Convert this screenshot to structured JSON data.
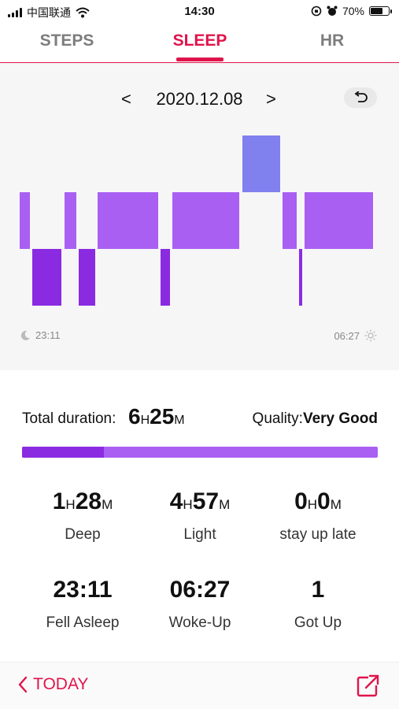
{
  "status_bar": {
    "carrier": "中国联通",
    "time": "14:30",
    "battery": "70%",
    "battery_level": 0.7
  },
  "tabs": [
    {
      "label": "STEPS",
      "active": false
    },
    {
      "label": "SLEEP",
      "active": true
    },
    {
      "label": "HR",
      "active": false
    }
  ],
  "date_nav": {
    "prev": "<",
    "date": "2020.12.08",
    "next": ">"
  },
  "chart_data": {
    "type": "timeline",
    "start_time": "23:11",
    "end_time": "06:27",
    "stages": [
      {
        "stage": "light",
        "from": 0.0,
        "to": 0.035
      },
      {
        "stage": "deep",
        "from": 0.035,
        "to": 0.125
      },
      {
        "stage": "light",
        "from": 0.125,
        "to": 0.165
      },
      {
        "stage": "deep",
        "from": 0.165,
        "to": 0.22
      },
      {
        "stage": "light",
        "from": 0.22,
        "to": 0.395
      },
      {
        "stage": "deep",
        "from": 0.395,
        "to": 0.43
      },
      {
        "stage": "light",
        "from": 0.43,
        "to": 0.625
      },
      {
        "stage": "awake",
        "from": 0.625,
        "to": 0.74
      },
      {
        "stage": "light",
        "from": 0.74,
        "to": 0.785
      },
      {
        "stage": "deep",
        "from": 0.785,
        "to": 0.8
      },
      {
        "stage": "light",
        "from": 0.8,
        "to": 1.0
      }
    ],
    "colors": {
      "awake": "#8080ee",
      "light": "#a95ff2",
      "deep": "#8a2be2"
    }
  },
  "summary": {
    "total_label": "Total duration:",
    "total_h": "6",
    "total_m": "25",
    "unit_h": "H",
    "unit_m": "M",
    "quality_label": "Quality:",
    "quality_value": "Very Good",
    "deep_fraction": 0.23
  },
  "stats": [
    {
      "h": "1",
      "m": "28",
      "label": "Deep"
    },
    {
      "h": "4",
      "m": "57",
      "label": "Light"
    },
    {
      "h": "0",
      "m": "0",
      "label": "stay up late"
    }
  ],
  "stats2": [
    {
      "value": "23:11",
      "label": "Fell Asleep"
    },
    {
      "value": "06:27",
      "label": "Woke-Up"
    },
    {
      "value": "1",
      "label": "Got Up"
    }
  ],
  "bottom": {
    "today_label": "TODAY"
  },
  "icons": {
    "signal": "signal-icon",
    "wifi": "wifi-icon",
    "alarm": "alarm-icon",
    "moon": "moon-icon",
    "sun": "sun-icon",
    "back": "undo-icon",
    "share": "share-icon"
  }
}
